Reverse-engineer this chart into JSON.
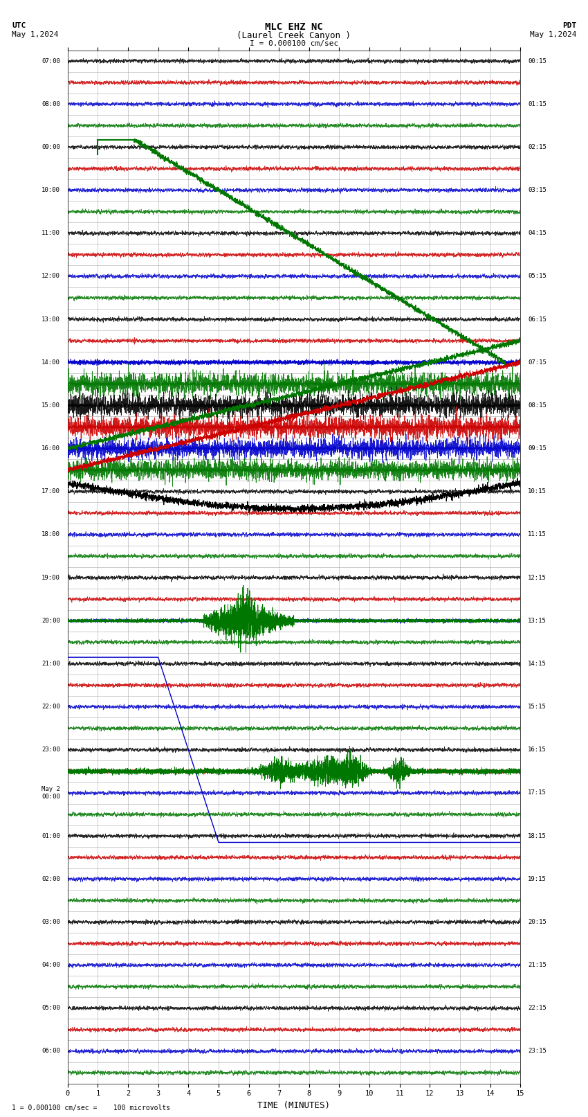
{
  "title_line1": "MLC EHZ NC",
  "title_line2": "(Laurel Creek Canyon )",
  "title_line3": "I = 0.000100 cm/sec",
  "left_header_line1": "UTC",
  "left_header_line2": "May 1,2024",
  "right_header_line1": "PDT",
  "right_header_line2": "May 1,2024",
  "xlabel": "TIME (MINUTES)",
  "footer": "1 = 0.000100 cm/sec =    100 microvolts",
  "xlim": [
    0,
    15
  ],
  "xticks": [
    0,
    1,
    2,
    3,
    4,
    5,
    6,
    7,
    8,
    9,
    10,
    11,
    12,
    13,
    14,
    15
  ],
  "bg_color": "#ffffff",
  "grid_color": "#aaaaaa",
  "num_rows": 48,
  "left_labels_utc": [
    "07:00",
    "",
    "08:00",
    "",
    "09:00",
    "",
    "10:00",
    "",
    "11:00",
    "",
    "12:00",
    "",
    "13:00",
    "",
    "14:00",
    "",
    "15:00",
    "",
    "16:00",
    "",
    "17:00",
    "",
    "18:00",
    "",
    "19:00",
    "",
    "20:00",
    "",
    "21:00",
    "",
    "22:00",
    "",
    "23:00",
    "",
    "May 2\n00:00",
    "",
    "01:00",
    "",
    "02:00",
    "",
    "03:00",
    "",
    "04:00",
    "",
    "05:00",
    "",
    "06:00",
    ""
  ],
  "right_labels_pdt": [
    "00:15",
    "",
    "01:15",
    "",
    "02:15",
    "",
    "03:15",
    "",
    "04:15",
    "",
    "05:15",
    "",
    "06:15",
    "",
    "07:15",
    "",
    "08:15",
    "",
    "09:15",
    "",
    "10:15",
    "",
    "11:15",
    "",
    "12:15",
    "",
    "13:15",
    "",
    "14:15",
    "",
    "15:15",
    "",
    "16:15",
    "",
    "17:15",
    "",
    "18:15",
    "",
    "19:15",
    "",
    "20:15",
    "",
    "21:15",
    "",
    "22:15",
    "",
    "23:15",
    ""
  ],
  "colors": {
    "black": "#000000",
    "red": "#cc0000",
    "blue": "#0000cc",
    "green": "#007700"
  },
  "seismogram_seed": 42
}
